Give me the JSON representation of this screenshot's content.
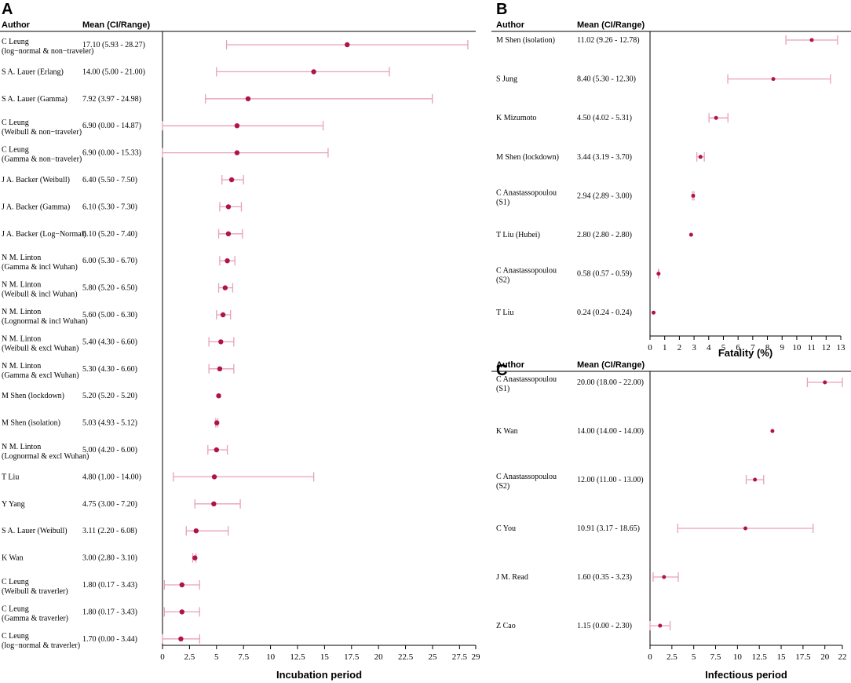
{
  "chart_data": [
    {
      "type": "forest",
      "panel": "A",
      "header_author": "Author",
      "header_mean": "Mean (CI/Range)",
      "xlabel": "Incubation period",
      "xlim": [
        0,
        29
      ],
      "ticks": [
        0,
        2.5,
        5,
        7.5,
        10,
        12.5,
        15,
        17.5,
        20,
        22.5,
        25,
        27.5,
        29
      ],
      "tick_labels": [
        "0",
        "2.5",
        "5",
        "7.5",
        "10",
        "12.5",
        "15",
        "17.5",
        "20",
        "22.5",
        "25",
        "27.5",
        "29"
      ],
      "rows": [
        {
          "author": [
            "C Leung",
            "(log−normal & non−traveler)"
          ],
          "text": "17.10 (5.93 - 28.27)",
          "mean": 17.1,
          "lo": 5.93,
          "hi": 28.27
        },
        {
          "author": [
            "S A. Lauer (Erlang)"
          ],
          "text": "14.00 (5.00 - 21.00)",
          "mean": 14.0,
          "lo": 5.0,
          "hi": 21.0
        },
        {
          "author": [
            "S A. Lauer (Gamma)"
          ],
          "text": "7.92 (3.97 - 24.98)",
          "mean": 7.92,
          "lo": 3.97,
          "hi": 24.98
        },
        {
          "author": [
            "C Leung",
            "(Weibull & non−traveler)"
          ],
          "text": "6.90 (0.00 - 14.87)",
          "mean": 6.9,
          "lo": 0.0,
          "hi": 14.87
        },
        {
          "author": [
            "C Leung",
            "(Gamma & non−traveler)"
          ],
          "text": "6.90 (0.00 - 15.33)",
          "mean": 6.9,
          "lo": 0.0,
          "hi": 15.33
        },
        {
          "author": [
            "J A. Backer (Weibull)"
          ],
          "text": "6.40 (5.50 - 7.50)",
          "mean": 6.4,
          "lo": 5.5,
          "hi": 7.5
        },
        {
          "author": [
            "J A. Backer (Gamma)"
          ],
          "text": "6.10 (5.30 - 7.30)",
          "mean": 6.1,
          "lo": 5.3,
          "hi": 7.3
        },
        {
          "author": [
            "J A. Backer (Log−Normal)"
          ],
          "text": "6.10 (5.20 - 7.40)",
          "mean": 6.1,
          "lo": 5.2,
          "hi": 7.4
        },
        {
          "author": [
            "N M. Linton",
            "(Gamma & incl Wuhan)"
          ],
          "text": "6.00 (5.30 - 6.70)",
          "mean": 6.0,
          "lo": 5.3,
          "hi": 6.7
        },
        {
          "author": [
            "N M. Linton",
            "(Weibull & incl Wuhan)"
          ],
          "text": "5.80 (5.20 - 6.50)",
          "mean": 5.8,
          "lo": 5.2,
          "hi": 6.5
        },
        {
          "author": [
            "N M. Linton",
            "(Lognormal & incl Wuhan)"
          ],
          "text": "5.60 (5.00 - 6.30)",
          "mean": 5.6,
          "lo": 5.0,
          "hi": 6.3
        },
        {
          "author": [
            "N M. Linton",
            "(Weibull & excl Wuhan)"
          ],
          "text": "5.40 (4.30 - 6.60)",
          "mean": 5.4,
          "lo": 4.3,
          "hi": 6.6
        },
        {
          "author": [
            "N M. Linton",
            "(Gamma & excl Wuhan)"
          ],
          "text": "5.30 (4.30 - 6.60)",
          "mean": 5.3,
          "lo": 4.3,
          "hi": 6.6
        },
        {
          "author": [
            "M Shen (lockdown)"
          ],
          "text": "5.20 (5.20 - 5.20)",
          "mean": 5.2,
          "lo": 5.2,
          "hi": 5.2
        },
        {
          "author": [
            "M Shen (isolation)"
          ],
          "text": "5.03 (4.93 - 5.12)",
          "mean": 5.03,
          "lo": 4.93,
          "hi": 5.12
        },
        {
          "author": [
            "N M. Linton",
            "(Lognormal & excl Wuhan)"
          ],
          "text": "5.00 (4.20 - 6.00)",
          "mean": 5.0,
          "lo": 4.2,
          "hi": 6.0
        },
        {
          "author": [
            "T Liu"
          ],
          "text": "4.80 (1.00 - 14.00)",
          "mean": 4.8,
          "lo": 1.0,
          "hi": 14.0
        },
        {
          "author": [
            "Y Yang"
          ],
          "text": "4.75 (3.00 - 7.20)",
          "mean": 4.75,
          "lo": 3.0,
          "hi": 7.2
        },
        {
          "author": [
            "S A. Lauer (Weibull)"
          ],
          "text": "3.11 (2.20 - 6.08)",
          "mean": 3.11,
          "lo": 2.2,
          "hi": 6.08
        },
        {
          "author": [
            "K Wan"
          ],
          "text": "3.00 (2.80 - 3.10)",
          "mean": 3.0,
          "lo": 2.8,
          "hi": 3.1
        },
        {
          "author": [
            "C Leung",
            "(Weibull & traverler)"
          ],
          "text": "1.80 (0.17 - 3.43)",
          "mean": 1.8,
          "lo": 0.17,
          "hi": 3.43
        },
        {
          "author": [
            "C Leung",
            "(Gamma & traverler)"
          ],
          "text": "1.80 (0.17 - 3.43)",
          "mean": 1.8,
          "lo": 0.17,
          "hi": 3.43
        },
        {
          "author": [
            "C Leung",
            "(log−normal & traverler)"
          ],
          "text": "1.70 (0.00 - 3.44)",
          "mean": 1.7,
          "lo": 0.0,
          "hi": 3.44
        }
      ]
    },
    {
      "type": "forest",
      "panel": "B",
      "header_author": "Author",
      "header_mean": "Mean (CI/Range)",
      "xlabel": "Fatality (%)",
      "xlim": [
        0,
        13
      ],
      "ticks": [
        0,
        1,
        2,
        3,
        4,
        5,
        6,
        7,
        8,
        9,
        10,
        11,
        12,
        13
      ],
      "tick_labels": [
        "0",
        "1",
        "2",
        "3",
        "4",
        "5",
        "6",
        "7",
        "8",
        "9",
        "10",
        "11",
        "12",
        "13"
      ],
      "rows": [
        {
          "author": [
            "M Shen (isolation)"
          ],
          "text": "11.02 (9.26 - 12.78)",
          "mean": 11.02,
          "lo": 9.26,
          "hi": 12.78
        },
        {
          "author": [
            "S Jung"
          ],
          "text": "8.40 (5.30 - 12.30)",
          "mean": 8.4,
          "lo": 5.3,
          "hi": 12.3
        },
        {
          "author": [
            "K Mizumoto"
          ],
          "text": "4.50 (4.02 - 5.31)",
          "mean": 4.5,
          "lo": 4.02,
          "hi": 5.31
        },
        {
          "author": [
            "M Shen (lockdown)"
          ],
          "text": "3.44 (3.19 - 3.70)",
          "mean": 3.44,
          "lo": 3.19,
          "hi": 3.7
        },
        {
          "author": [
            "C Anastassopoulou",
            "(S1)"
          ],
          "text": "2.94 (2.89 - 3.00)",
          "mean": 2.94,
          "lo": 2.89,
          "hi": 3.0
        },
        {
          "author": [
            "T Liu (Hubei)"
          ],
          "text": "2.80 (2.80 - 2.80)",
          "mean": 2.8,
          "lo": 2.8,
          "hi": 2.8
        },
        {
          "author": [
            "C Anastassopoulou",
            "(S2)"
          ],
          "text": "0.58 (0.57 - 0.59)",
          "mean": 0.58,
          "lo": 0.57,
          "hi": 0.59
        },
        {
          "author": [
            "T Liu"
          ],
          "text": "0.24 (0.24 - 0.24)",
          "mean": 0.24,
          "lo": 0.24,
          "hi": 0.24
        }
      ]
    },
    {
      "type": "forest",
      "panel": "C",
      "header_author": "Author",
      "header_mean": "Mean (CI/Range)",
      "xlabel": "Infectious period",
      "xlim": [
        0,
        22
      ],
      "ticks": [
        0,
        2.5,
        5,
        7.5,
        10,
        12.5,
        15,
        17.5,
        20,
        22
      ],
      "tick_labels": [
        "0",
        "2.5",
        "5",
        "7.5",
        "10",
        "12.5",
        "15",
        "17.5",
        "20",
        "22"
      ],
      "rows": [
        {
          "author": [
            "C Anastassopoulou",
            "(S1)"
          ],
          "text": "20.00 (18.00 - 22.00)",
          "mean": 20.0,
          "lo": 18.0,
          "hi": 22.0
        },
        {
          "author": [
            "K Wan"
          ],
          "text": "14.00 (14.00 - 14.00)",
          "mean": 14.0,
          "lo": 14.0,
          "hi": 14.0
        },
        {
          "author": [
            "C Anastassopoulou",
            "(S2)"
          ],
          "text": "12.00 (11.00 - 13.00)",
          "mean": 12.0,
          "lo": 11.0,
          "hi": 13.0
        },
        {
          "author": [
            "C You"
          ],
          "text": "10.91 (3.17 - 18.65)",
          "mean": 10.91,
          "lo": 3.17,
          "hi": 18.65
        },
        {
          "author": [
            "J M. Read"
          ],
          "text": "1.60 (0.35 - 3.23)",
          "mean": 1.6,
          "lo": 0.35,
          "hi": 3.23
        },
        {
          "author": [
            "Z Cao"
          ],
          "text": "1.15 (0.00 - 2.30)",
          "mean": 1.15,
          "lo": 0.0,
          "hi": 2.3
        }
      ]
    }
  ],
  "colors": {
    "ci": "#e8a0b8",
    "point": "#b0124e",
    "axis": "#000000"
  }
}
